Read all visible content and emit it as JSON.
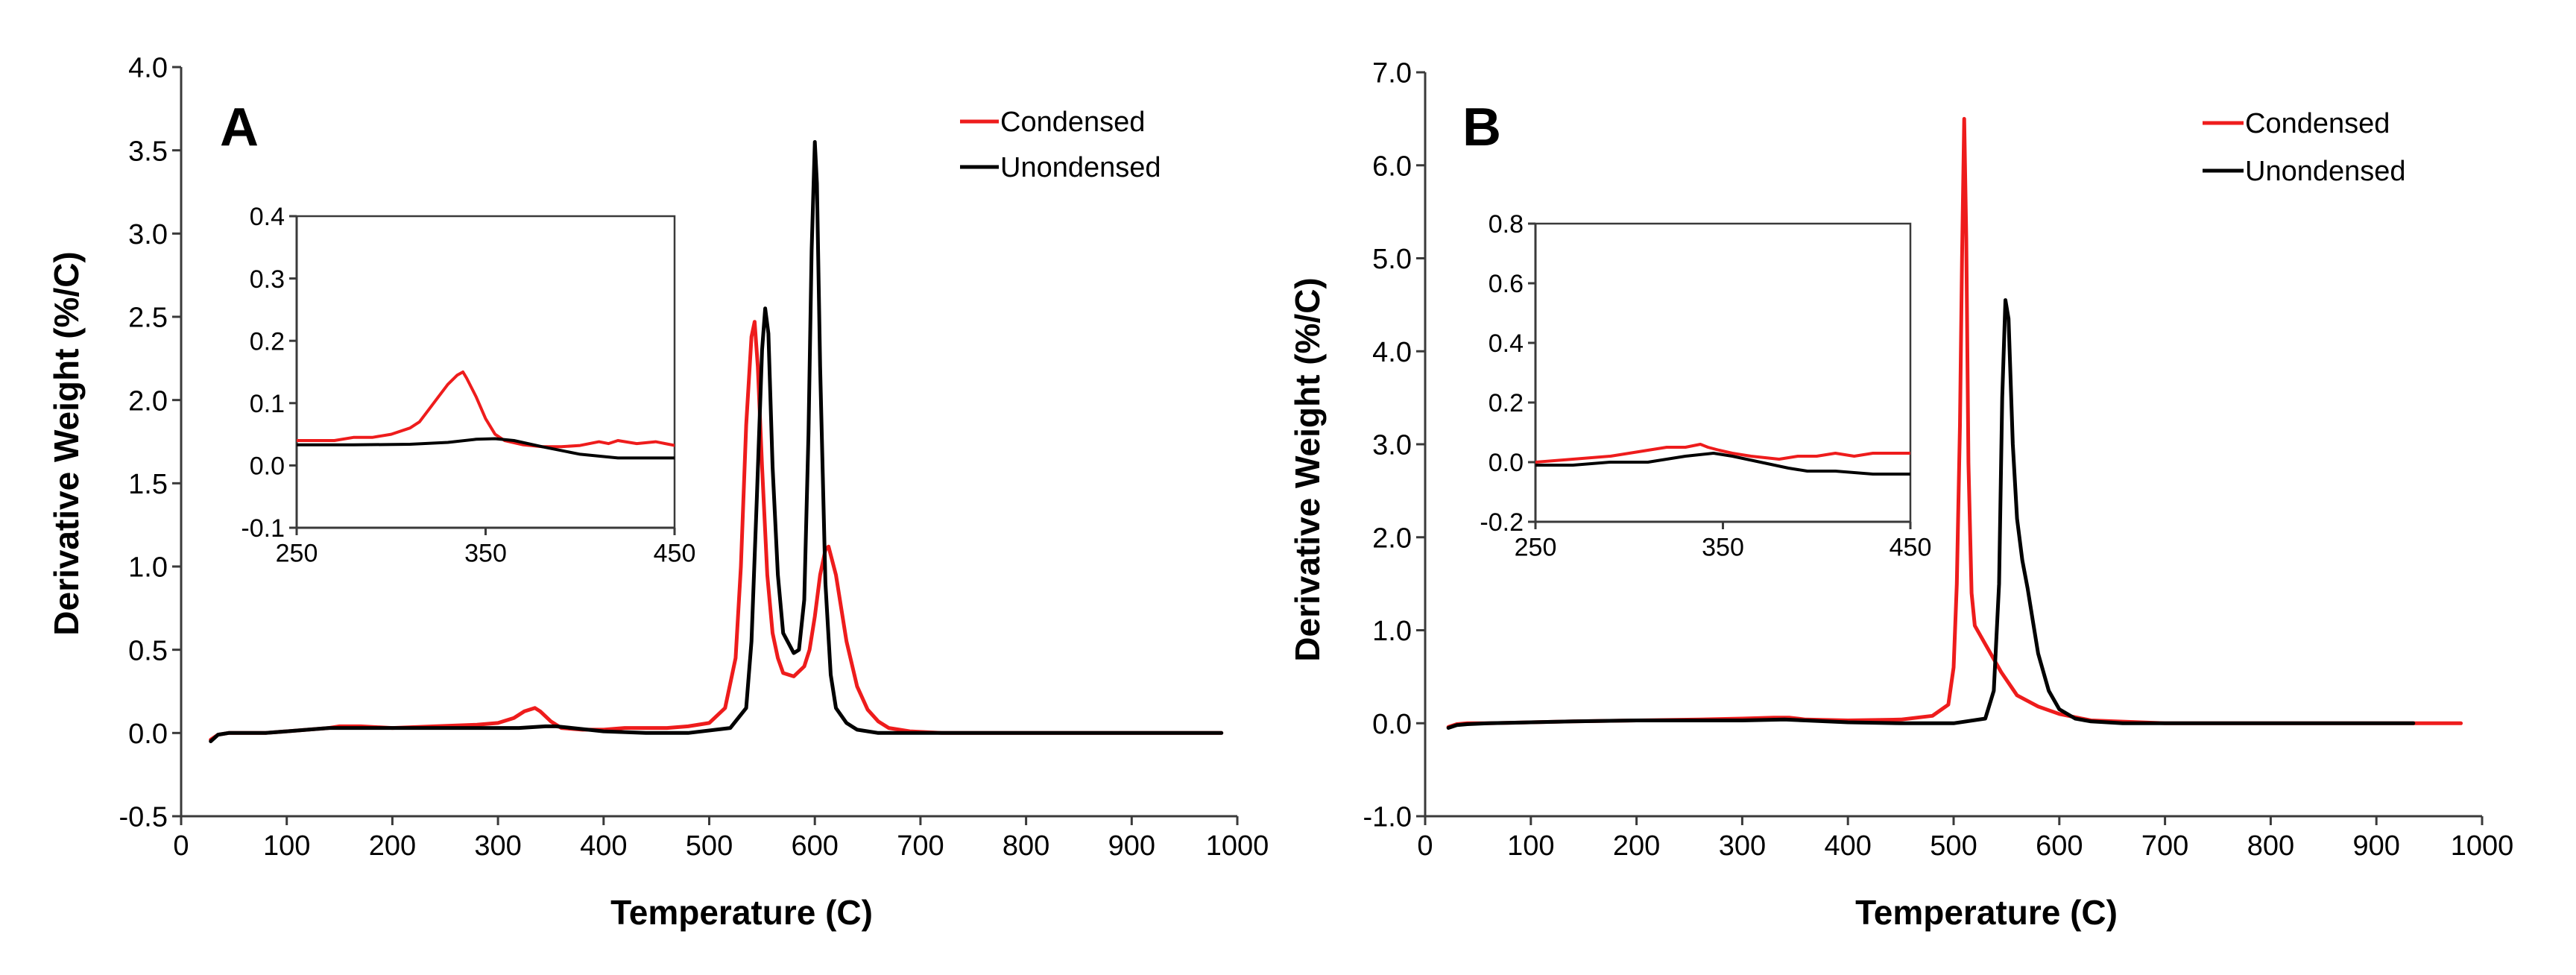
{
  "colors": {
    "condensed": "#ee1c1c",
    "uncondensed": "#000000",
    "axis": "#3a3a3a"
  },
  "chart_data": [
    {
      "panel_label": "A",
      "type": "line",
      "title": "",
      "xlabel": "Temperature (C)",
      "ylabel": "Derivative Weight (%/C)",
      "xlim": [
        0,
        1000
      ],
      "ylim": [
        -0.5,
        4.0
      ],
      "x_ticks": [
        "0",
        "100",
        "200",
        "300",
        "400",
        "500",
        "600",
        "700",
        "800",
        "900",
        "1000"
      ],
      "y_ticks": [
        "-0.5",
        "0.0",
        "0.5",
        "1.0",
        "1.5",
        "2.0",
        "2.5",
        "3.0",
        "3.5",
        "4.0"
      ],
      "legend": {
        "position": "top-right",
        "entries": [
          "Condensed",
          "Unondensed"
        ]
      },
      "series": [
        {
          "name": "Condensed",
          "x": [
            28,
            35,
            45,
            60,
            80,
            100,
            120,
            140,
            150,
            170,
            200,
            240,
            280,
            300,
            315,
            325,
            335,
            340,
            350,
            360,
            380,
            400,
            420,
            440,
            460,
            480,
            500,
            515,
            525,
            530,
            535,
            540,
            543,
            546,
            550,
            555,
            560,
            565,
            570,
            580,
            590,
            595,
            600,
            605,
            610,
            613,
            620,
            630,
            640,
            650,
            660,
            670,
            690,
            720,
            780,
            850,
            920,
            985
          ],
          "y": [
            -0.04,
            -0.01,
            0.0,
            0.0,
            0.0,
            0.01,
            0.02,
            0.03,
            0.04,
            0.04,
            0.03,
            0.04,
            0.05,
            0.06,
            0.09,
            0.13,
            0.15,
            0.13,
            0.07,
            0.03,
            0.02,
            0.02,
            0.03,
            0.03,
            0.03,
            0.04,
            0.06,
            0.15,
            0.45,
            1.0,
            1.85,
            2.38,
            2.47,
            2.2,
            1.6,
            0.95,
            0.6,
            0.45,
            0.36,
            0.34,
            0.4,
            0.5,
            0.7,
            0.95,
            1.1,
            1.12,
            0.95,
            0.55,
            0.28,
            0.14,
            0.07,
            0.03,
            0.01,
            0.0,
            0.0,
            0.0,
            0.0,
            0.0
          ]
        },
        {
          "name": "Unondensed",
          "x": [
            28,
            35,
            45,
            60,
            80,
            100,
            120,
            140,
            150,
            170,
            200,
            240,
            280,
            320,
            345,
            355,
            370,
            400,
            440,
            480,
            520,
            535,
            540,
            545,
            550,
            553,
            556,
            560,
            565,
            570,
            580,
            585,
            590,
            594,
            597,
            600,
            602,
            605,
            610,
            615,
            620,
            630,
            640,
            660,
            700,
            800,
            900,
            985
          ],
          "y": [
            -0.05,
            -0.01,
            0.0,
            0.0,
            0.0,
            0.01,
            0.02,
            0.03,
            0.03,
            0.03,
            0.03,
            0.03,
            0.03,
            0.03,
            0.04,
            0.04,
            0.03,
            0.01,
            0.0,
            0.0,
            0.03,
            0.15,
            0.55,
            1.4,
            2.3,
            2.55,
            2.4,
            1.6,
            0.95,
            0.6,
            0.48,
            0.5,
            0.8,
            1.8,
            2.9,
            3.55,
            3.3,
            2.2,
            0.9,
            0.35,
            0.15,
            0.06,
            0.02,
            0.0,
            0.0,
            0.0,
            0.0,
            0.0
          ]
        }
      ],
      "inset": {
        "xlim": [
          250,
          450
        ],
        "ylim": [
          -0.1,
          0.4
        ],
        "x_ticks": [
          "250",
          "350",
          "450"
        ],
        "y_ticks": [
          "-0.1",
          "0.0",
          "0.1",
          "0.2",
          "0.3",
          "0.4"
        ],
        "series": [
          {
            "name": "Condensed",
            "x": [
              250,
              260,
              270,
              280,
              290,
              300,
              310,
              315,
              320,
              325,
              330,
              335,
              338,
              340,
              345,
              350,
              355,
              360,
              370,
              380,
              390,
              400,
              410,
              415,
              420,
              430,
              440,
              450
            ],
            "y": [
              0.04,
              0.04,
              0.04,
              0.045,
              0.045,
              0.05,
              0.06,
              0.07,
              0.09,
              0.11,
              0.13,
              0.145,
              0.15,
              0.14,
              0.11,
              0.075,
              0.05,
              0.04,
              0.033,
              0.03,
              0.03,
              0.032,
              0.038,
              0.035,
              0.04,
              0.035,
              0.038,
              0.032
            ]
          },
          {
            "name": "Unondensed",
            "x": [
              250,
              280,
              310,
              330,
              345,
              355,
              365,
              380,
              400,
              420,
              450
            ],
            "y": [
              0.033,
              0.033,
              0.034,
              0.037,
              0.042,
              0.043,
              0.04,
              0.03,
              0.018,
              0.012,
              0.012
            ]
          }
        ]
      }
    },
    {
      "panel_label": "B",
      "type": "line",
      "title": "",
      "xlabel": "Temperature (C)",
      "ylabel": "Derivative Weight (%/C)",
      "xlim": [
        0,
        1000
      ],
      "ylim": [
        -1.0,
        7.0
      ],
      "x_ticks": [
        "0",
        "100",
        "200",
        "300",
        "400",
        "500",
        "600",
        "700",
        "800",
        "900",
        "1000"
      ],
      "y_ticks": [
        "-1.0",
        "0.0",
        "1.0",
        "2.0",
        "3.0",
        "4.0",
        "5.0",
        "6.0",
        "7.0"
      ],
      "legend": {
        "position": "top-right",
        "entries": [
          "Condensed",
          "Unondensed"
        ]
      },
      "series": [
        {
          "name": "Condensed",
          "x": [
            22,
            30,
            40,
            60,
            100,
            140,
            200,
            260,
            300,
            330,
            345,
            360,
            400,
            450,
            480,
            495,
            500,
            503,
            506,
            508,
            510,
            512,
            514,
            517,
            520,
            530,
            545,
            560,
            580,
            600,
            630,
            700,
            800,
            900,
            980
          ],
          "y": [
            -0.04,
            -0.01,
            0.0,
            0.0,
            0.01,
            0.02,
            0.03,
            0.04,
            0.05,
            0.06,
            0.06,
            0.04,
            0.03,
            0.04,
            0.08,
            0.2,
            0.6,
            1.5,
            3.2,
            5.0,
            6.5,
            5.2,
            2.8,
            1.4,
            1.05,
            0.85,
            0.55,
            0.3,
            0.18,
            0.1,
            0.03,
            0.0,
            0.0,
            0.0,
            0.0
          ]
        },
        {
          "name": "Unondensed",
          "x": [
            22,
            30,
            40,
            60,
            100,
            140,
            200,
            260,
            300,
            340,
            360,
            400,
            450,
            500,
            530,
            538,
            543,
            546,
            549,
            552,
            556,
            560,
            565,
            570,
            575,
            580,
            590,
            600,
            615,
            630,
            660,
            700,
            800,
            900,
            935
          ],
          "y": [
            -0.05,
            -0.02,
            -0.01,
            0.0,
            0.01,
            0.02,
            0.03,
            0.03,
            0.03,
            0.04,
            0.03,
            0.01,
            0.0,
            0.0,
            0.05,
            0.35,
            1.5,
            3.5,
            4.55,
            4.35,
            3.0,
            2.2,
            1.75,
            1.45,
            1.1,
            0.75,
            0.35,
            0.15,
            0.05,
            0.02,
            0.0,
            0.0,
            0.0,
            0.0,
            0.0
          ]
        }
      ],
      "inset": {
        "xlim": [
          250,
          450
        ],
        "ylim": [
          -0.2,
          0.8
        ],
        "x_ticks": [
          "250",
          "350",
          "450"
        ],
        "y_ticks": [
          "-0.2",
          "0.0",
          "0.2",
          "0.4",
          "0.6",
          "0.8"
        ],
        "series": [
          {
            "name": "Condensed",
            "x": [
              250,
              270,
              290,
              300,
              310,
              320,
              330,
              338,
              342,
              348,
              355,
              365,
              380,
              390,
              400,
              410,
              420,
              430,
              440,
              450
            ],
            "y": [
              0.0,
              0.01,
              0.02,
              0.03,
              0.04,
              0.05,
              0.05,
              0.06,
              0.05,
              0.04,
              0.03,
              0.02,
              0.01,
              0.02,
              0.02,
              0.03,
              0.02,
              0.03,
              0.03,
              0.03
            ]
          },
          {
            "name": "Unondensed",
            "x": [
              250,
              270,
              290,
              310,
              330,
              345,
              355,
              370,
              385,
              395,
              410,
              430,
              450
            ],
            "y": [
              -0.01,
              -0.01,
              0.0,
              0.0,
              0.02,
              0.03,
              0.02,
              0.0,
              -0.02,
              -0.03,
              -0.03,
              -0.04,
              -0.04
            ]
          }
        ]
      }
    }
  ]
}
